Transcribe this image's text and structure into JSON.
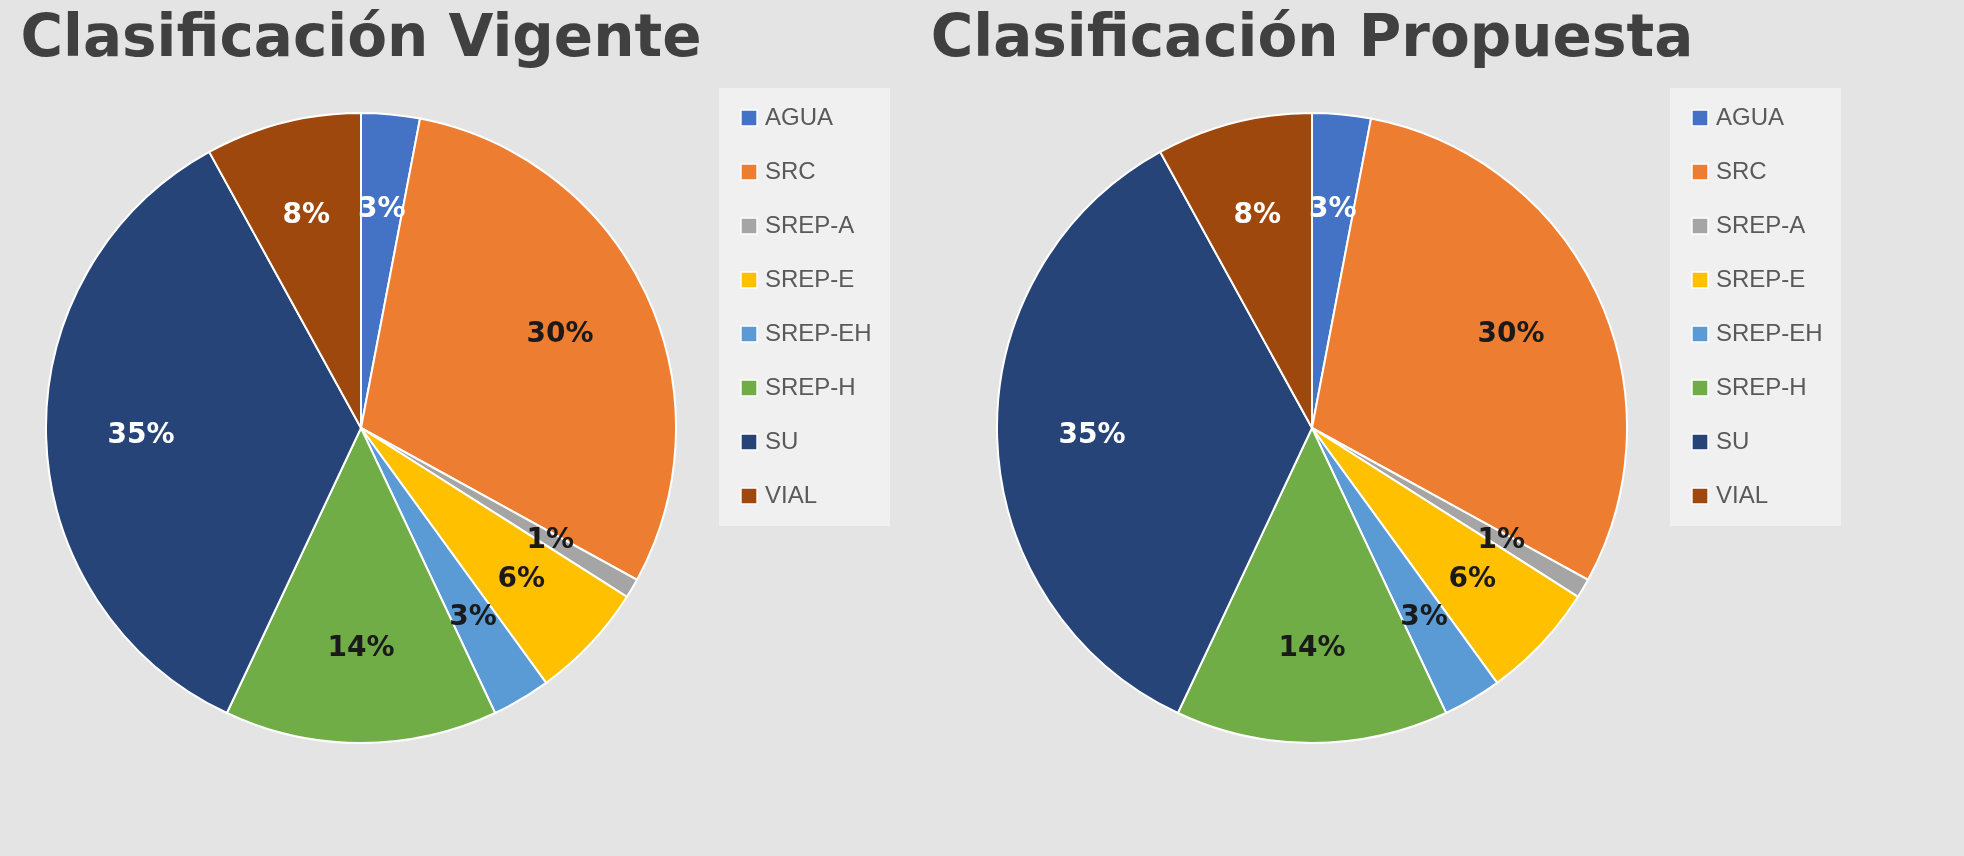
{
  "chart_data": [
    {
      "type": "pie",
      "title": "Clasificación Vigente",
      "categories": [
        "AGUA",
        "SRC",
        "SREP-A",
        "SREP-E",
        "SREP-EH",
        "SREP-H",
        "SU",
        "VIAL"
      ],
      "values": [
        3,
        30,
        1,
        6,
        3,
        14,
        35,
        8
      ],
      "colors": [
        "#4472c4",
        "#ed7d31",
        "#a5a5a5",
        "#ffc000",
        "#5b9bd5",
        "#70ad47",
        "#264478",
        "#9e480e"
      ],
      "value_labels": [
        "3%",
        "30%",
        "1%",
        "6%",
        "3%",
        "14%",
        "35%",
        "8%"
      ],
      "legend": "right"
    },
    {
      "type": "pie",
      "title": "Clasificación Propuesta",
      "categories": [
        "AGUA",
        "SRC",
        "SREP-A",
        "SREP-E",
        "SREP-EH",
        "SREP-H",
        "SU",
        "VIAL"
      ],
      "values": [
        3,
        30,
        1,
        6,
        3,
        14,
        35,
        8
      ],
      "colors": [
        "#4472c4",
        "#ed7d31",
        "#a5a5a5",
        "#ffc000",
        "#5b9bd5",
        "#70ad47",
        "#264478",
        "#9e480e"
      ],
      "value_labels": [
        "3%",
        "30%",
        "1%",
        "6%",
        "3%",
        "14%",
        "35%",
        "8%"
      ],
      "legend": "right"
    }
  ]
}
